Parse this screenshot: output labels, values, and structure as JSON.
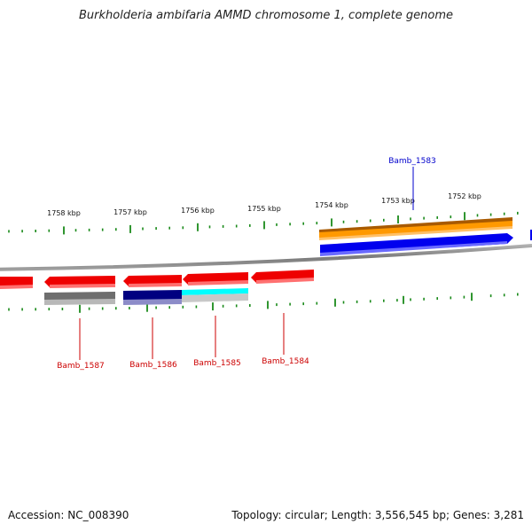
{
  "title": "Burkholderia ambifaria AMMD chromosome 1, complete genome",
  "footer": {
    "accession": "Accession: NC_008390",
    "summary": "Topology: circular; Length: 3,556,545 bp; Genes: 3,281"
  },
  "scale": {
    "ticks": [
      "1758 kbp",
      "1757 kbp",
      "1756 kbp",
      "1755 kbp",
      "1754 kbp",
      "1753 kbp",
      "1752 kbp"
    ],
    "tick_color": "#1a8a1a"
  },
  "genes": [
    {
      "name": "Bamb_1583",
      "label_color": "#0000cc",
      "strand": "+"
    },
    {
      "name": "Bamb_1584",
      "label_color": "#cc0000",
      "strand": "-"
    },
    {
      "name": "Bamb_1585",
      "label_color": "#cc0000",
      "strand": "-"
    },
    {
      "name": "Bamb_1586",
      "label_color": "#cc0000",
      "strand": "-"
    },
    {
      "name": "Bamb_1587",
      "label_color": "#cc0000",
      "strand": "-"
    }
  ],
  "colors": {
    "backbone": "#808080",
    "cds_forward": "#0000ee",
    "cds_reverse": "#ee0000",
    "orange_feature": "#ff9900",
    "navy_feature": "#000080",
    "cyan_feature": "#00ffff",
    "grey_feature": "#6e6e6e"
  }
}
